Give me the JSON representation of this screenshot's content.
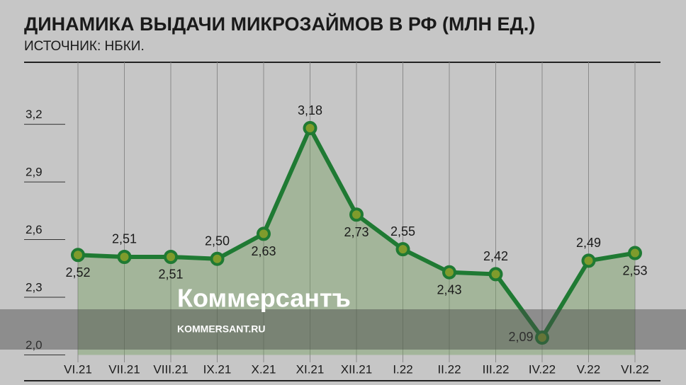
{
  "chart_data": {
    "type": "line",
    "title": "ДИНАМИКА ВЫДАЧИ МИКРОЗАЙМОВ В РФ (МЛН ЕД.)",
    "subtitle": "ИСТОЧНИК: НБКИ.",
    "categories": [
      "VI.21",
      "VII.21",
      "VIII.21",
      "IX.21",
      "X.21",
      "XI.21",
      "XII.21",
      "I.22",
      "II.22",
      "III.22",
      "IV.22",
      "V.22",
      "VI.22"
    ],
    "values": [
      2.52,
      2.51,
      2.51,
      2.5,
      2.63,
      3.18,
      2.73,
      2.55,
      2.43,
      2.42,
      2.09,
      2.49,
      2.53
    ],
    "value_labels": [
      "2,52",
      "2,51",
      "2,51",
      "2,50",
      "2,63",
      "3,18",
      "2,73",
      "2,55",
      "2,43",
      "2,42",
      "2,09",
      "2,49",
      "2,53"
    ],
    "color": "#1f7a33",
    "ylim": [
      2.0,
      3.2
    ],
    "yticks": [
      {
        "value": 2.0,
        "label": "2,0"
      },
      {
        "value": 2.3,
        "label": "2,3"
      },
      {
        "value": 2.6,
        "label": "2,6"
      },
      {
        "value": 2.9,
        "label": "2,9"
      },
      {
        "value": 3.2,
        "label": "3,2"
      }
    ],
    "grid": true
  },
  "watermark": {
    "brand": "Коммерсантъ",
    "url": "KOMMERSANT.RU"
  }
}
